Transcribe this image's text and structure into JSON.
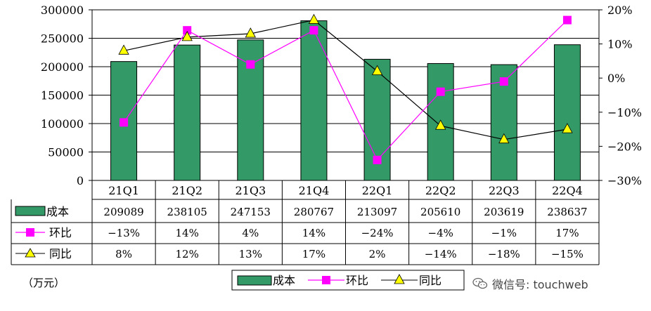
{
  "chart_data": {
    "type": "bar",
    "categories": [
      "21Q1",
      "21Q2",
      "21Q3",
      "21Q4",
      "22Q1",
      "22Q2",
      "22Q3",
      "22Q4"
    ],
    "series": [
      {
        "name": "成本",
        "type": "bar",
        "axis": "left",
        "values": [
          209089,
          238105,
          247153,
          280767,
          213097,
          205610,
          203619,
          238637
        ],
        "labels": [
          "209089",
          "238105",
          "247153",
          "280767",
          "213097",
          "205610",
          "203619",
          "238637"
        ],
        "color": "#339966"
      },
      {
        "name": "环比",
        "type": "line",
        "axis": "right",
        "values": [
          -13,
          14,
          4,
          14,
          -24,
          -4,
          -1,
          17
        ],
        "labels": [
          "−13%",
          "14%",
          "4%",
          "14%",
          "−24%",
          "−4%",
          "−1%",
          "17%"
        ],
        "color": "#ff00ff",
        "marker": "square"
      },
      {
        "name": "同比",
        "type": "line",
        "axis": "right",
        "values": [
          8,
          12,
          13,
          17,
          2,
          -14,
          -18,
          -15
        ],
        "labels": [
          "8%",
          "12%",
          "13%",
          "17%",
          "2%",
          "−14%",
          "−18%",
          "−15%"
        ],
        "color": "#000000",
        "marker": "triangle",
        "marker_color": "#ffff00"
      }
    ],
    "left_axis": {
      "ylim": [
        0,
        300000
      ],
      "ticks": [
        "0",
        "50000",
        "100000",
        "150000",
        "200000",
        "250000",
        "300000"
      ]
    },
    "right_axis": {
      "ylim": [
        -30,
        20
      ],
      "ticks": [
        "20%",
        "10%",
        "0%",
        "−10%",
        "−20%",
        "−30%"
      ]
    },
    "grid": true,
    "legend_position": "bottom",
    "data_table": true
  },
  "unit_label": "（万元）",
  "watermark": "微信号: touchweb"
}
